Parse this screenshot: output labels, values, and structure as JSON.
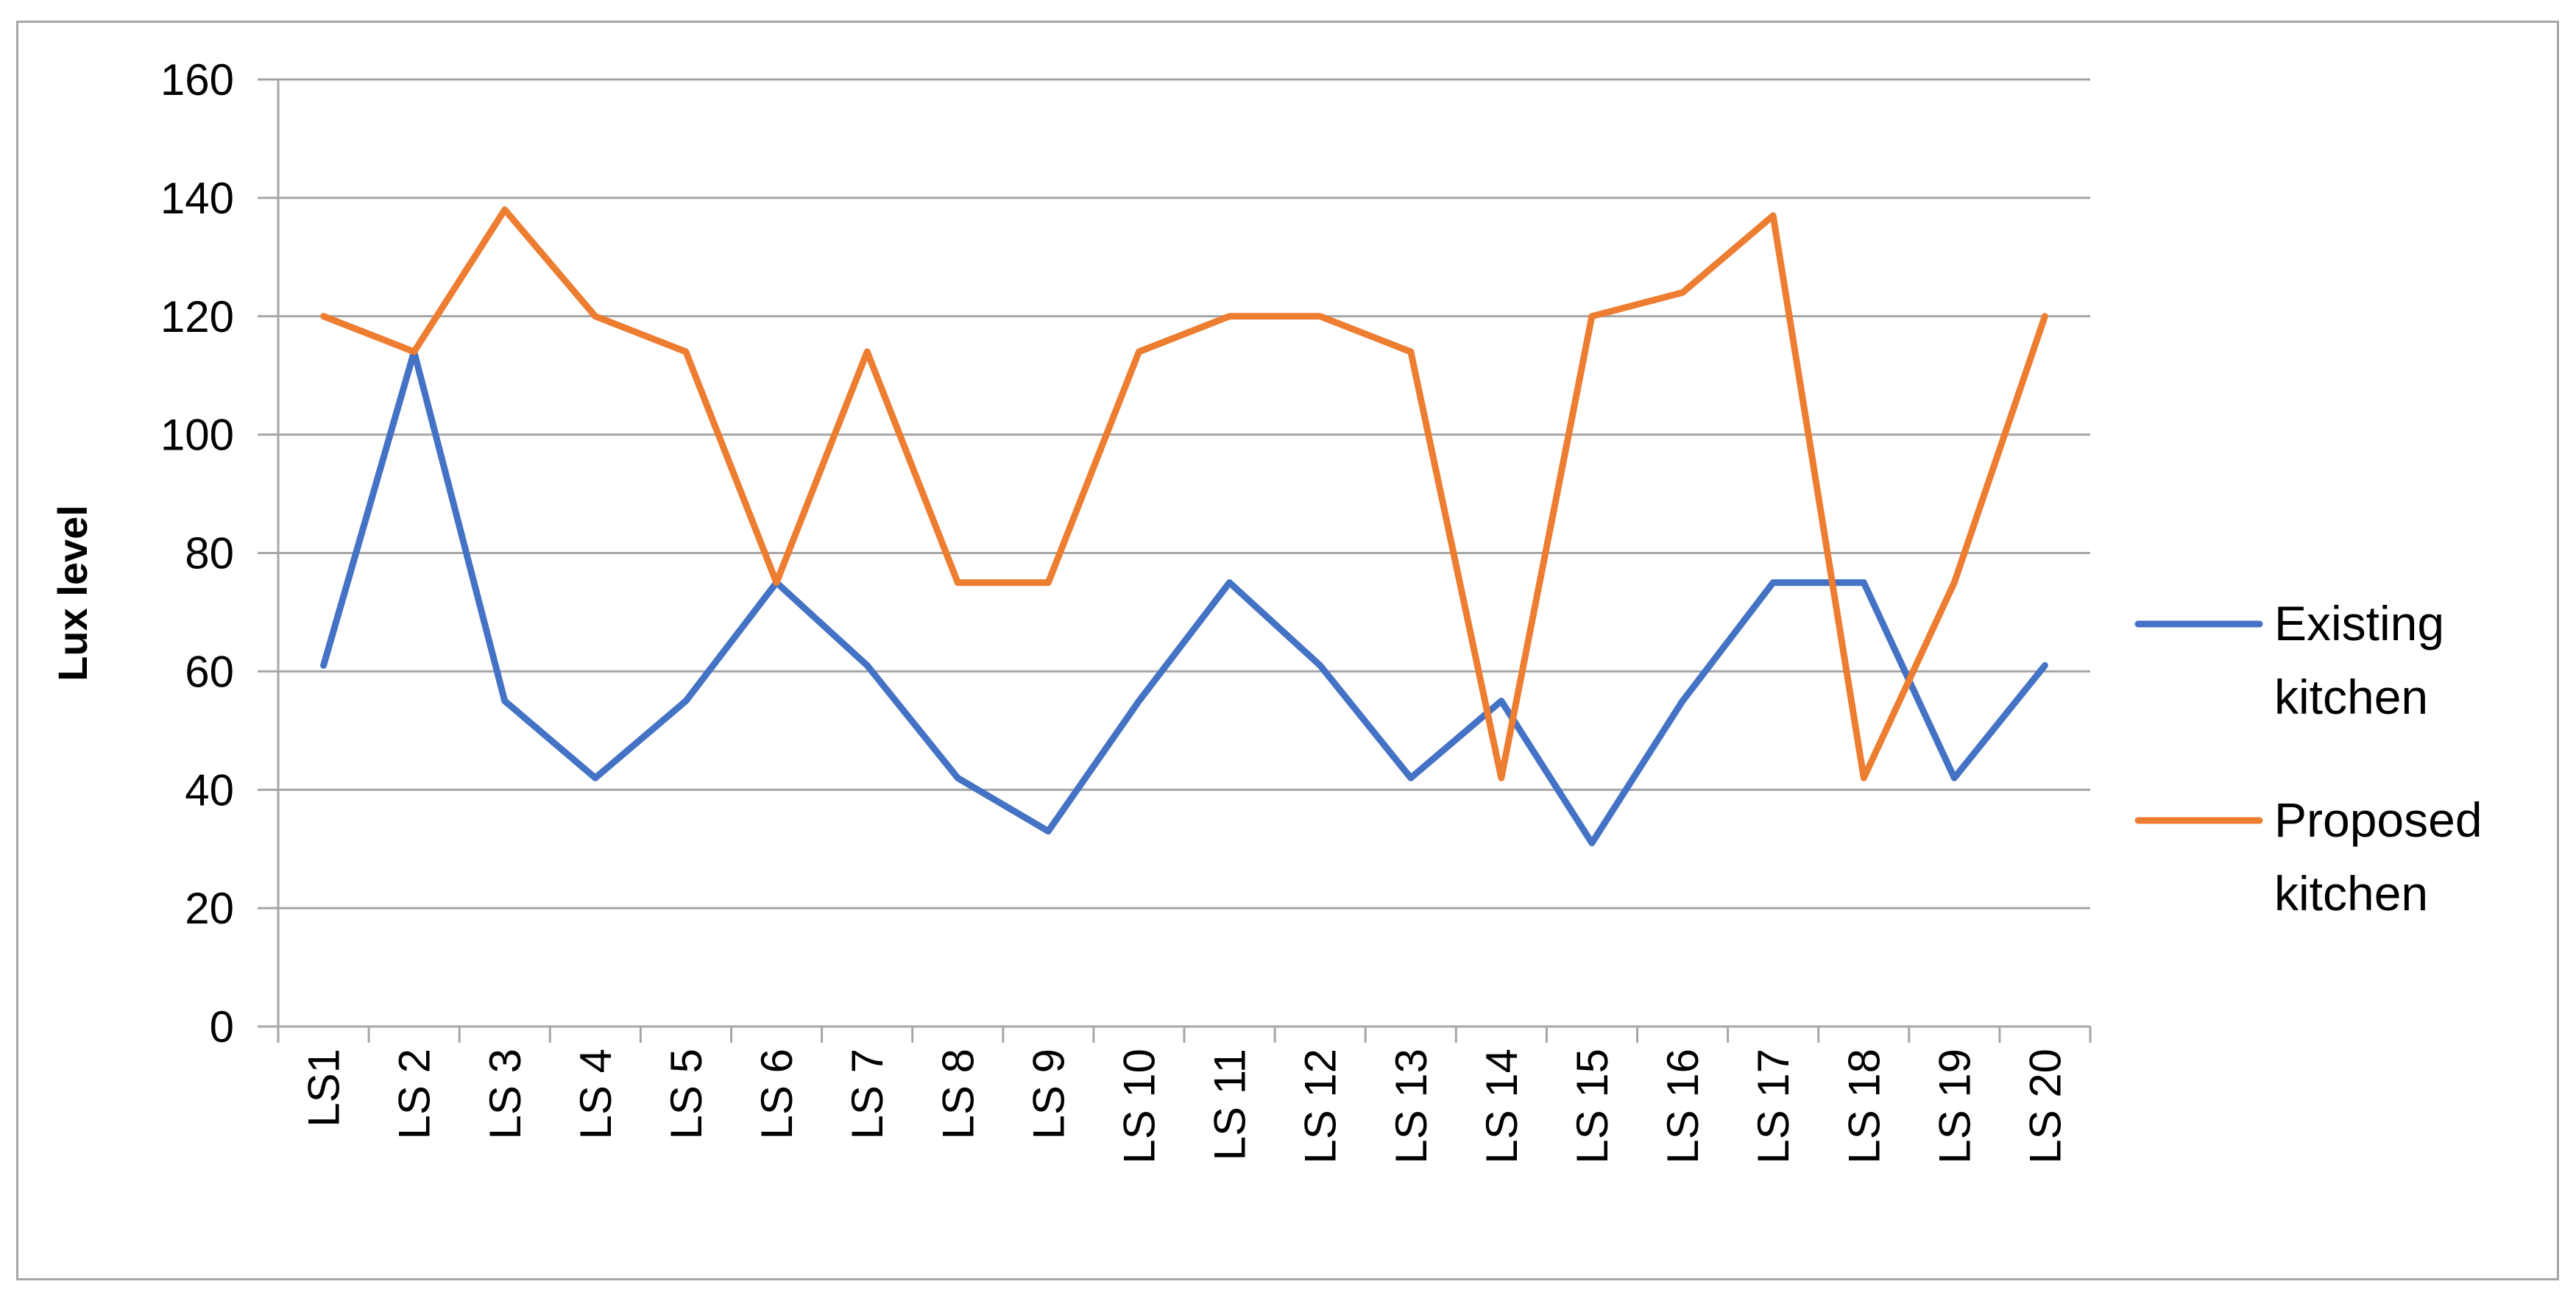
{
  "chart_data": {
    "type": "line",
    "title": "",
    "xlabel": "",
    "ylabel": "Lux level",
    "ylim": [
      0,
      160
    ],
    "yticks": [
      0,
      20,
      40,
      60,
      80,
      100,
      120,
      140,
      160
    ],
    "grid": true,
    "legend_position": "right",
    "categories": [
      "LS1",
      "LS 2",
      "LS 3",
      "LS 4",
      "LS 5",
      "LS 6",
      "LS 7",
      "LS 8",
      "LS 9",
      "LS 10",
      "LS 11",
      "LS 12",
      "LS 13",
      "LS 14",
      "LS 15",
      "LS 16",
      "LS 17",
      "LS 18",
      "LS 19",
      "LS 20"
    ],
    "series": [
      {
        "name": "Existing kitchen",
        "legend_lines": [
          "Existing",
          "kitchen"
        ],
        "color": "#4472c4",
        "values": [
          61,
          114,
          55,
          42,
          55,
          75,
          61,
          42,
          33,
          55,
          75,
          61,
          42,
          55,
          31,
          55,
          75,
          75,
          42,
          61
        ]
      },
      {
        "name": "Proposed kitchen",
        "legend_lines": [
          "Proposed",
          "kitchen"
        ],
        "color": "#ed7d31",
        "values": [
          120,
          114,
          138,
          120,
          114,
          75,
          114,
          75,
          75,
          114,
          120,
          120,
          114,
          42,
          120,
          124,
          137,
          42,
          75,
          120
        ]
      }
    ]
  },
  "colors": {
    "gridline": "#a6a6a6",
    "frame": "#a6a6a6"
  }
}
